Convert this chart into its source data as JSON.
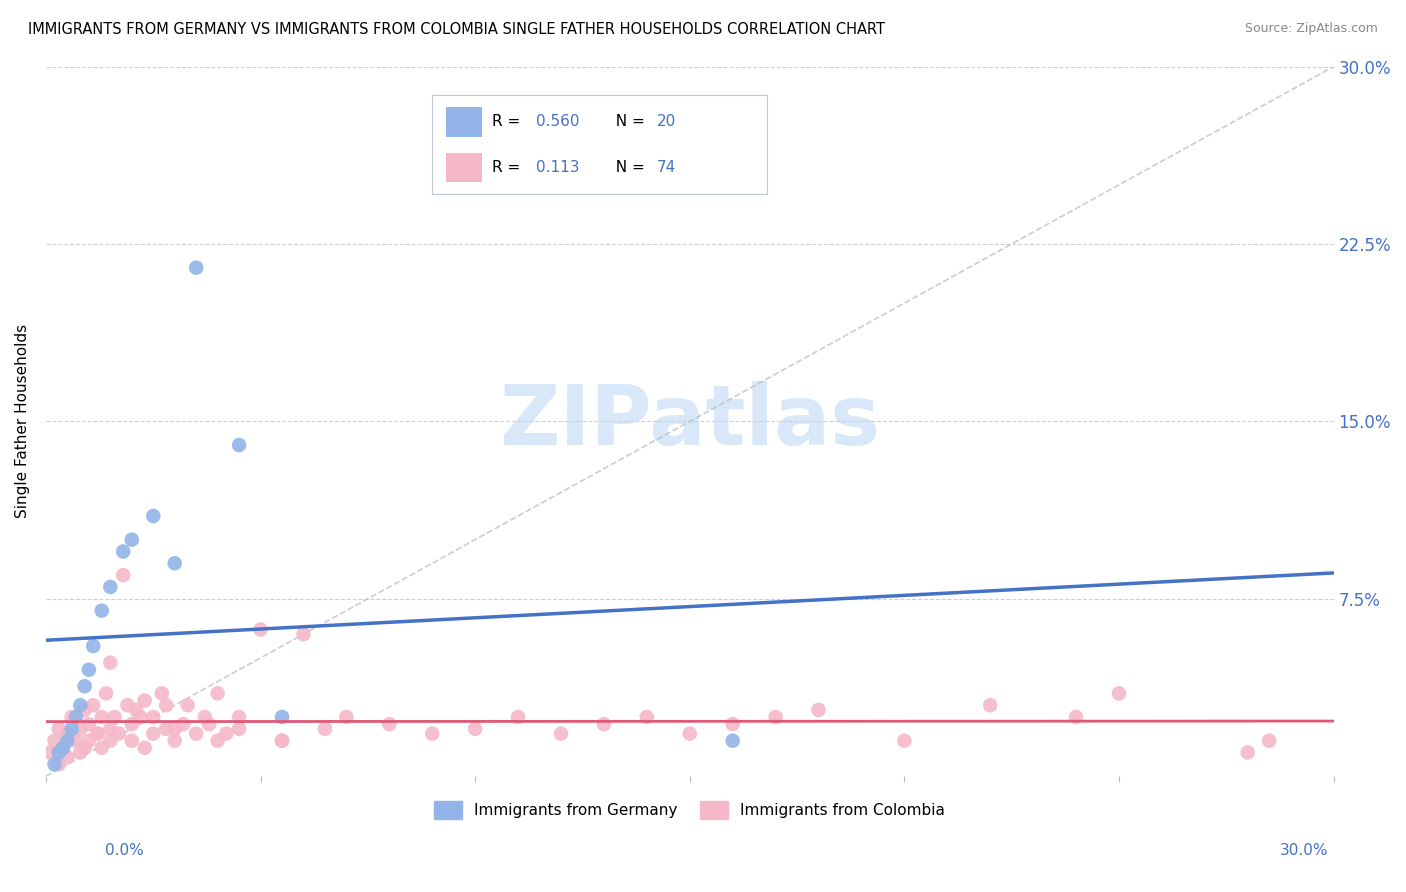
{
  "title": "IMMIGRANTS FROM GERMANY VS IMMIGRANTS FROM COLOMBIA SINGLE FATHER HOUSEHOLDS CORRELATION CHART",
  "source": "Source: ZipAtlas.com",
  "ylabel": "Single Father Households",
  "color_germany": "#92b4e8",
  "color_colombia": "#f4b8c8",
  "color_germany_line": "#4472c4",
  "color_colombia_line": "#e05878",
  "color_legend_text": "#4472c4",
  "color_grid": "#d0d0d0",
  "color_diag": "#b0b8c8",
  "watermark_color": "#d8e8f8",
  "germany_x": [
    0.2,
    0.3,
    0.4,
    0.5,
    0.6,
    0.7,
    0.8,
    0.9,
    1.0,
    1.1,
    1.3,
    1.5,
    1.8,
    2.0,
    2.5,
    3.0,
    3.5,
    4.5,
    5.5,
    16.0
  ],
  "germany_y": [
    0.5,
    1.0,
    1.2,
    1.5,
    2.0,
    2.5,
    3.0,
    3.8,
    4.5,
    5.5,
    7.0,
    8.0,
    9.5,
    10.0,
    11.0,
    9.0,
    21.5,
    14.0,
    2.5,
    1.5
  ],
  "colombia_x": [
    0.1,
    0.2,
    0.3,
    0.3,
    0.4,
    0.5,
    0.5,
    0.6,
    0.7,
    0.8,
    0.8,
    0.9,
    1.0,
    1.0,
    1.1,
    1.2,
    1.3,
    1.3,
    1.4,
    1.5,
    1.5,
    1.6,
    1.7,
    1.8,
    1.9,
    2.0,
    2.0,
    2.1,
    2.2,
    2.3,
    2.5,
    2.5,
    2.7,
    2.8,
    3.0,
    3.2,
    3.3,
    3.5,
    3.7,
    4.0,
    4.0,
    4.2,
    4.5,
    5.0,
    5.5,
    6.0,
    7.0,
    8.0,
    9.0,
    10.0,
    11.0,
    12.0,
    13.0,
    14.0,
    15.0,
    16.0,
    17.0,
    18.0,
    20.0,
    22.0,
    24.0,
    25.0,
    28.0,
    28.5,
    3.0,
    4.5,
    2.8,
    1.5,
    2.3,
    5.5,
    6.5,
    0.9,
    1.2,
    3.8
  ],
  "colombia_y": [
    1.0,
    1.5,
    0.5,
    2.0,
    1.2,
    1.8,
    0.8,
    2.5,
    1.5,
    2.0,
    1.0,
    2.8,
    2.2,
    1.5,
    3.0,
    1.8,
    2.5,
    1.2,
    3.5,
    2.0,
    1.5,
    2.5,
    1.8,
    8.5,
    3.0,
    2.2,
    1.5,
    2.8,
    2.5,
    3.2,
    1.8,
    2.5,
    3.5,
    2.0,
    1.5,
    2.2,
    3.0,
    1.8,
    2.5,
    3.5,
    1.5,
    1.8,
    2.0,
    6.2,
    1.5,
    6.0,
    2.5,
    2.2,
    1.8,
    2.0,
    2.5,
    1.8,
    2.2,
    2.5,
    1.8,
    2.2,
    2.5,
    2.8,
    1.5,
    3.0,
    2.5,
    3.5,
    1.0,
    1.5,
    2.0,
    2.5,
    3.0,
    4.8,
    1.2,
    1.5,
    2.0,
    1.2,
    1.8,
    2.2
  ]
}
